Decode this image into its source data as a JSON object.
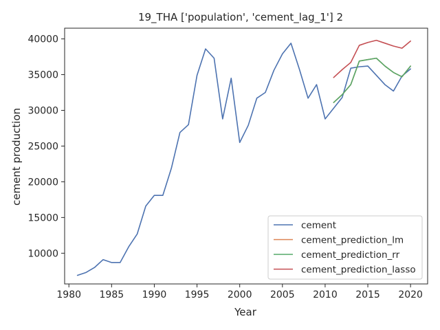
{
  "chart_data": {
    "type": "line",
    "title": "19_THA ['population', 'cement_lag_1'] 2",
    "xlabel": "Year",
    "ylabel": "cement production",
    "xlim": [
      1979.5,
      2022
    ],
    "ylim": [
      5700,
      41500
    ],
    "x_ticks": [
      1980,
      1985,
      1990,
      1995,
      2000,
      2005,
      2010,
      2015,
      2020
    ],
    "y_ticks": [
      10000,
      15000,
      20000,
      25000,
      30000,
      35000,
      40000
    ],
    "grid": false,
    "legend_position": "lower-right",
    "series": [
      {
        "name": "cement",
        "color": "#4c72b0",
        "x": [
          1981,
          1982,
          1983,
          1984,
          1985,
          1986,
          1987,
          1988,
          1989,
          1990,
          1991,
          1992,
          1993,
          1994,
          1995,
          1996,
          1997,
          1998,
          1999,
          2000,
          2001,
          2002,
          2003,
          2004,
          2005,
          2006,
          2007,
          2008,
          2009,
          2010,
          2011,
          2012,
          2013,
          2014,
          2015,
          2016,
          2017,
          2018,
          2019,
          2020
        ],
        "y": [
          6900,
          7300,
          8000,
          9100,
          8700,
          8700,
          10900,
          12700,
          16600,
          18100,
          18100,
          21900,
          26900,
          28000,
          34900,
          38600,
          37300,
          28800,
          34500,
          25500,
          27900,
          31700,
          32500,
          35600,
          37900,
          39400,
          35700,
          31700,
          33600,
          28800,
          30300,
          31800,
          35900,
          36100,
          36200,
          34900,
          33600,
          32700,
          34800,
          35800
        ]
      },
      {
        "name": "cement_prediction_lm",
        "color": "#dd8452",
        "x": [
          2011,
          2012,
          2013,
          2014,
          2015,
          2016,
          2017,
          2018,
          2019,
          2020
        ],
        "y": [
          31100,
          32200,
          33600,
          36900,
          37100,
          37300,
          36200,
          35300,
          34700,
          36200
        ]
      },
      {
        "name": "cement_prediction_rr",
        "color": "#55a868",
        "x": [
          2011,
          2012,
          2013,
          2014,
          2015,
          2016,
          2017,
          2018,
          2019,
          2020
        ],
        "y": [
          31100,
          32200,
          33600,
          36900,
          37100,
          37300,
          36200,
          35300,
          34700,
          36200
        ]
      },
      {
        "name": "cement_prediction_lasso",
        "color": "#c44e52",
        "x": [
          2011,
          2012,
          2013,
          2014,
          2015,
          2016,
          2017,
          2018,
          2019,
          2020
        ],
        "y": [
          34600,
          35700,
          36700,
          39100,
          39500,
          39800,
          39400,
          39000,
          38700,
          39700
        ]
      }
    ]
  }
}
